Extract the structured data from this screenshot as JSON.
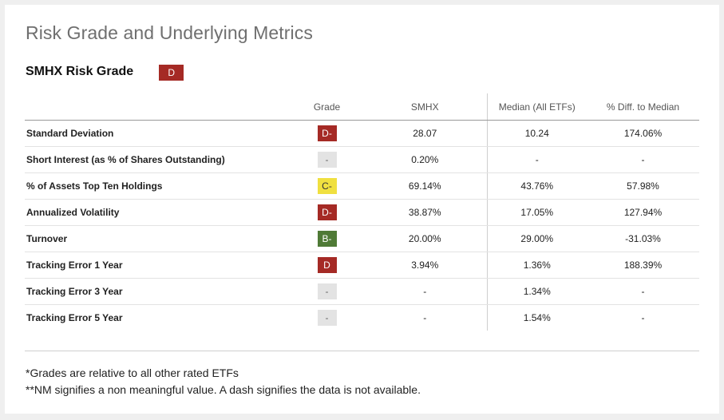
{
  "title": "Risk Grade and Underlying Metrics",
  "risk_grade": {
    "label": "SMHX Risk Grade",
    "grade": "D"
  },
  "table": {
    "headers": [
      "",
      "Grade",
      "SMHX",
      "Median (All ETFs)",
      "% Diff. to Median"
    ],
    "rows": [
      {
        "metric": "Standard Deviation",
        "grade": "D-",
        "grade_color": "#a52a25",
        "smhx": "28.07",
        "median": "10.24",
        "diff": "174.06%"
      },
      {
        "metric": "Short Interest (as % of Shares Outstanding)",
        "grade": "-",
        "grade_color": "#e3e3e3",
        "smhx": "0.20%",
        "median": "-",
        "diff": "-"
      },
      {
        "metric": "% of Assets Top Ten Holdings",
        "grade": "C-",
        "grade_color": "#f0e040",
        "smhx": "69.14%",
        "median": "43.76%",
        "diff": "57.98%"
      },
      {
        "metric": "Annualized Volatility",
        "grade": "D-",
        "grade_color": "#a52a25",
        "smhx": "38.87%",
        "median": "17.05%",
        "diff": "127.94%"
      },
      {
        "metric": "Turnover",
        "grade": "B-",
        "grade_color": "#4f7a36",
        "smhx": "20.00%",
        "median": "29.00%",
        "diff": "-31.03%"
      },
      {
        "metric": "Tracking Error 1 Year",
        "grade": "D",
        "grade_color": "#a52a25",
        "smhx": "3.94%",
        "median": "1.36%",
        "diff": "188.39%"
      },
      {
        "metric": "Tracking Error 3 Year",
        "grade": "-",
        "grade_color": "#e3e3e3",
        "smhx": "-",
        "median": "1.34%",
        "diff": "-"
      },
      {
        "metric": "Tracking Error 5 Year",
        "grade": "-",
        "grade_color": "#e3e3e3",
        "smhx": "-",
        "median": "1.54%",
        "diff": "-"
      }
    ]
  },
  "notes": [
    "*Grades are relative to all other rated ETFs",
    "**NM signifies a non meaningful value. A dash signifies the data is not available."
  ]
}
